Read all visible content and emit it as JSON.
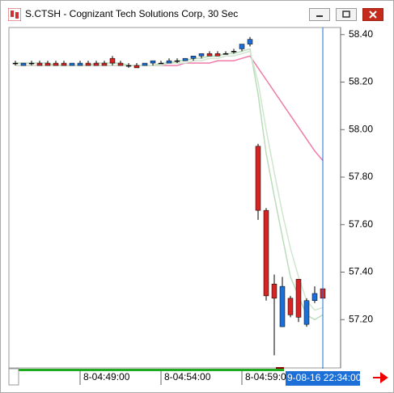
{
  "chart_data": {
    "type": "candlestick",
    "title": "S.CTSH - Cognizant Tech Solutions Corp, 30 Sec",
    "categories": [
      null,
      null,
      null,
      null,
      null,
      null,
      null,
      null,
      "8-04:49:00",
      null,
      null,
      null,
      null,
      null,
      null,
      null,
      null,
      null,
      "8-04:54:00",
      null,
      null,
      null,
      null,
      null,
      null,
      null,
      null,
      null,
      "8-04:59:0",
      null,
      null,
      null,
      null,
      null,
      null,
      null,
      null,
      null,
      null
    ],
    "crosshair_label": "9-08-16 22:34:00",
    "open": [
      58.28,
      58.27,
      58.28,
      58.28,
      58.28,
      58.28,
      58.28,
      58.27,
      58.27,
      58.28,
      58.28,
      58.28,
      58.3,
      58.28,
      58.27,
      58.27,
      58.27,
      58.28,
      58.28,
      58.28,
      58.29,
      58.29,
      58.3,
      58.31,
      58.32,
      58.32,
      58.32,
      58.33,
      58.34,
      58.36,
      57.93,
      57.66,
      57.35,
      57.17,
      57.29,
      57.37,
      57.18,
      57.28,
      57.33
    ],
    "high": [
      58.29,
      58.28,
      58.29,
      58.29,
      58.29,
      58.29,
      58.29,
      58.28,
      58.29,
      58.29,
      58.29,
      58.29,
      58.31,
      58.29,
      58.28,
      58.28,
      58.28,
      58.29,
      58.29,
      58.3,
      58.3,
      58.3,
      58.31,
      58.32,
      58.33,
      58.33,
      58.33,
      58.34,
      58.36,
      58.39,
      57.94,
      57.67,
      57.39,
      57.38,
      57.3,
      57.37,
      57.29,
      57.34,
      57.36
    ],
    "low": [
      58.27,
      58.27,
      58.27,
      58.27,
      58.27,
      58.27,
      58.27,
      58.27,
      58.27,
      58.27,
      58.27,
      58.27,
      58.27,
      58.27,
      58.26,
      58.26,
      58.27,
      58.27,
      58.28,
      58.28,
      58.28,
      58.29,
      58.29,
      58.3,
      58.31,
      58.31,
      58.32,
      58.32,
      58.33,
      58.35,
      57.62,
      57.28,
      57.05,
      57.17,
      57.21,
      57.19,
      57.17,
      57.27,
      57.28
    ],
    "close": [
      58.28,
      58.28,
      58.28,
      58.27,
      58.27,
      58.27,
      58.27,
      58.28,
      58.28,
      58.27,
      58.27,
      58.27,
      58.28,
      58.27,
      58.27,
      58.26,
      58.28,
      58.29,
      58.28,
      58.29,
      58.29,
      58.3,
      58.31,
      58.32,
      58.31,
      58.31,
      58.32,
      58.33,
      58.36,
      58.38,
      57.66,
      57.3,
      57.29,
      57.34,
      57.22,
      57.21,
      57.28,
      57.31,
      57.29
    ],
    "up_color": "#1c6fd6",
    "down_color": "#d42424",
    "doji_color": "#000000",
    "series": [
      {
        "color": "#f07aa8",
        "values": [
          58.27,
          58.27,
          58.27,
          58.27,
          58.27,
          58.27,
          58.27,
          58.27,
          58.27,
          58.27,
          58.27,
          58.27,
          58.27,
          58.27,
          58.27,
          58.27,
          58.27,
          58.27,
          58.27,
          58.27,
          58.27,
          58.28,
          58.28,
          58.28,
          58.28,
          58.29,
          58.29,
          58.29,
          58.3,
          58.31,
          58.26,
          58.21,
          58.16,
          58.11,
          58.06,
          58.01,
          57.96,
          57.91,
          57.87
        ]
      },
      {
        "color": "#b9dcb9",
        "values": [
          58.28,
          58.28,
          58.28,
          58.28,
          58.28,
          58.27,
          58.27,
          58.27,
          58.27,
          58.27,
          58.28,
          58.28,
          58.28,
          58.28,
          58.27,
          58.27,
          58.27,
          58.27,
          58.28,
          58.28,
          58.29,
          58.29,
          58.3,
          58.3,
          58.31,
          58.31,
          58.32,
          58.32,
          58.33,
          58.34,
          58.15,
          57.9,
          57.72,
          57.55,
          57.38,
          57.3,
          57.22,
          57.2,
          57.22
        ]
      },
      {
        "color": "#cfe6cf",
        "values": [
          58.27,
          58.27,
          58.27,
          58.27,
          58.27,
          58.27,
          58.27,
          58.27,
          58.27,
          58.27,
          58.27,
          58.27,
          58.27,
          58.27,
          58.27,
          58.27,
          58.27,
          58.27,
          58.27,
          58.28,
          58.28,
          58.28,
          58.29,
          58.29,
          58.3,
          58.3,
          58.31,
          58.31,
          58.32,
          58.33,
          58.2,
          58.0,
          57.82,
          57.65,
          57.5,
          57.38,
          57.28,
          57.24,
          57.25
        ]
      }
    ],
    "ylim": [
      57.0,
      58.43
    ],
    "yticks": [
      {
        "value": 58.4,
        "label": "58.40"
      },
      {
        "value": 58.2,
        "label": "58.20"
      },
      {
        "value": 58.0,
        "label": "58.00"
      },
      {
        "value": 57.8,
        "label": "57.80"
      },
      {
        "value": 57.6,
        "label": "57.60"
      },
      {
        "value": 57.4,
        "label": "57.40"
      },
      {
        "value": 57.2,
        "label": "57.20"
      }
    ],
    "grid": false
  }
}
